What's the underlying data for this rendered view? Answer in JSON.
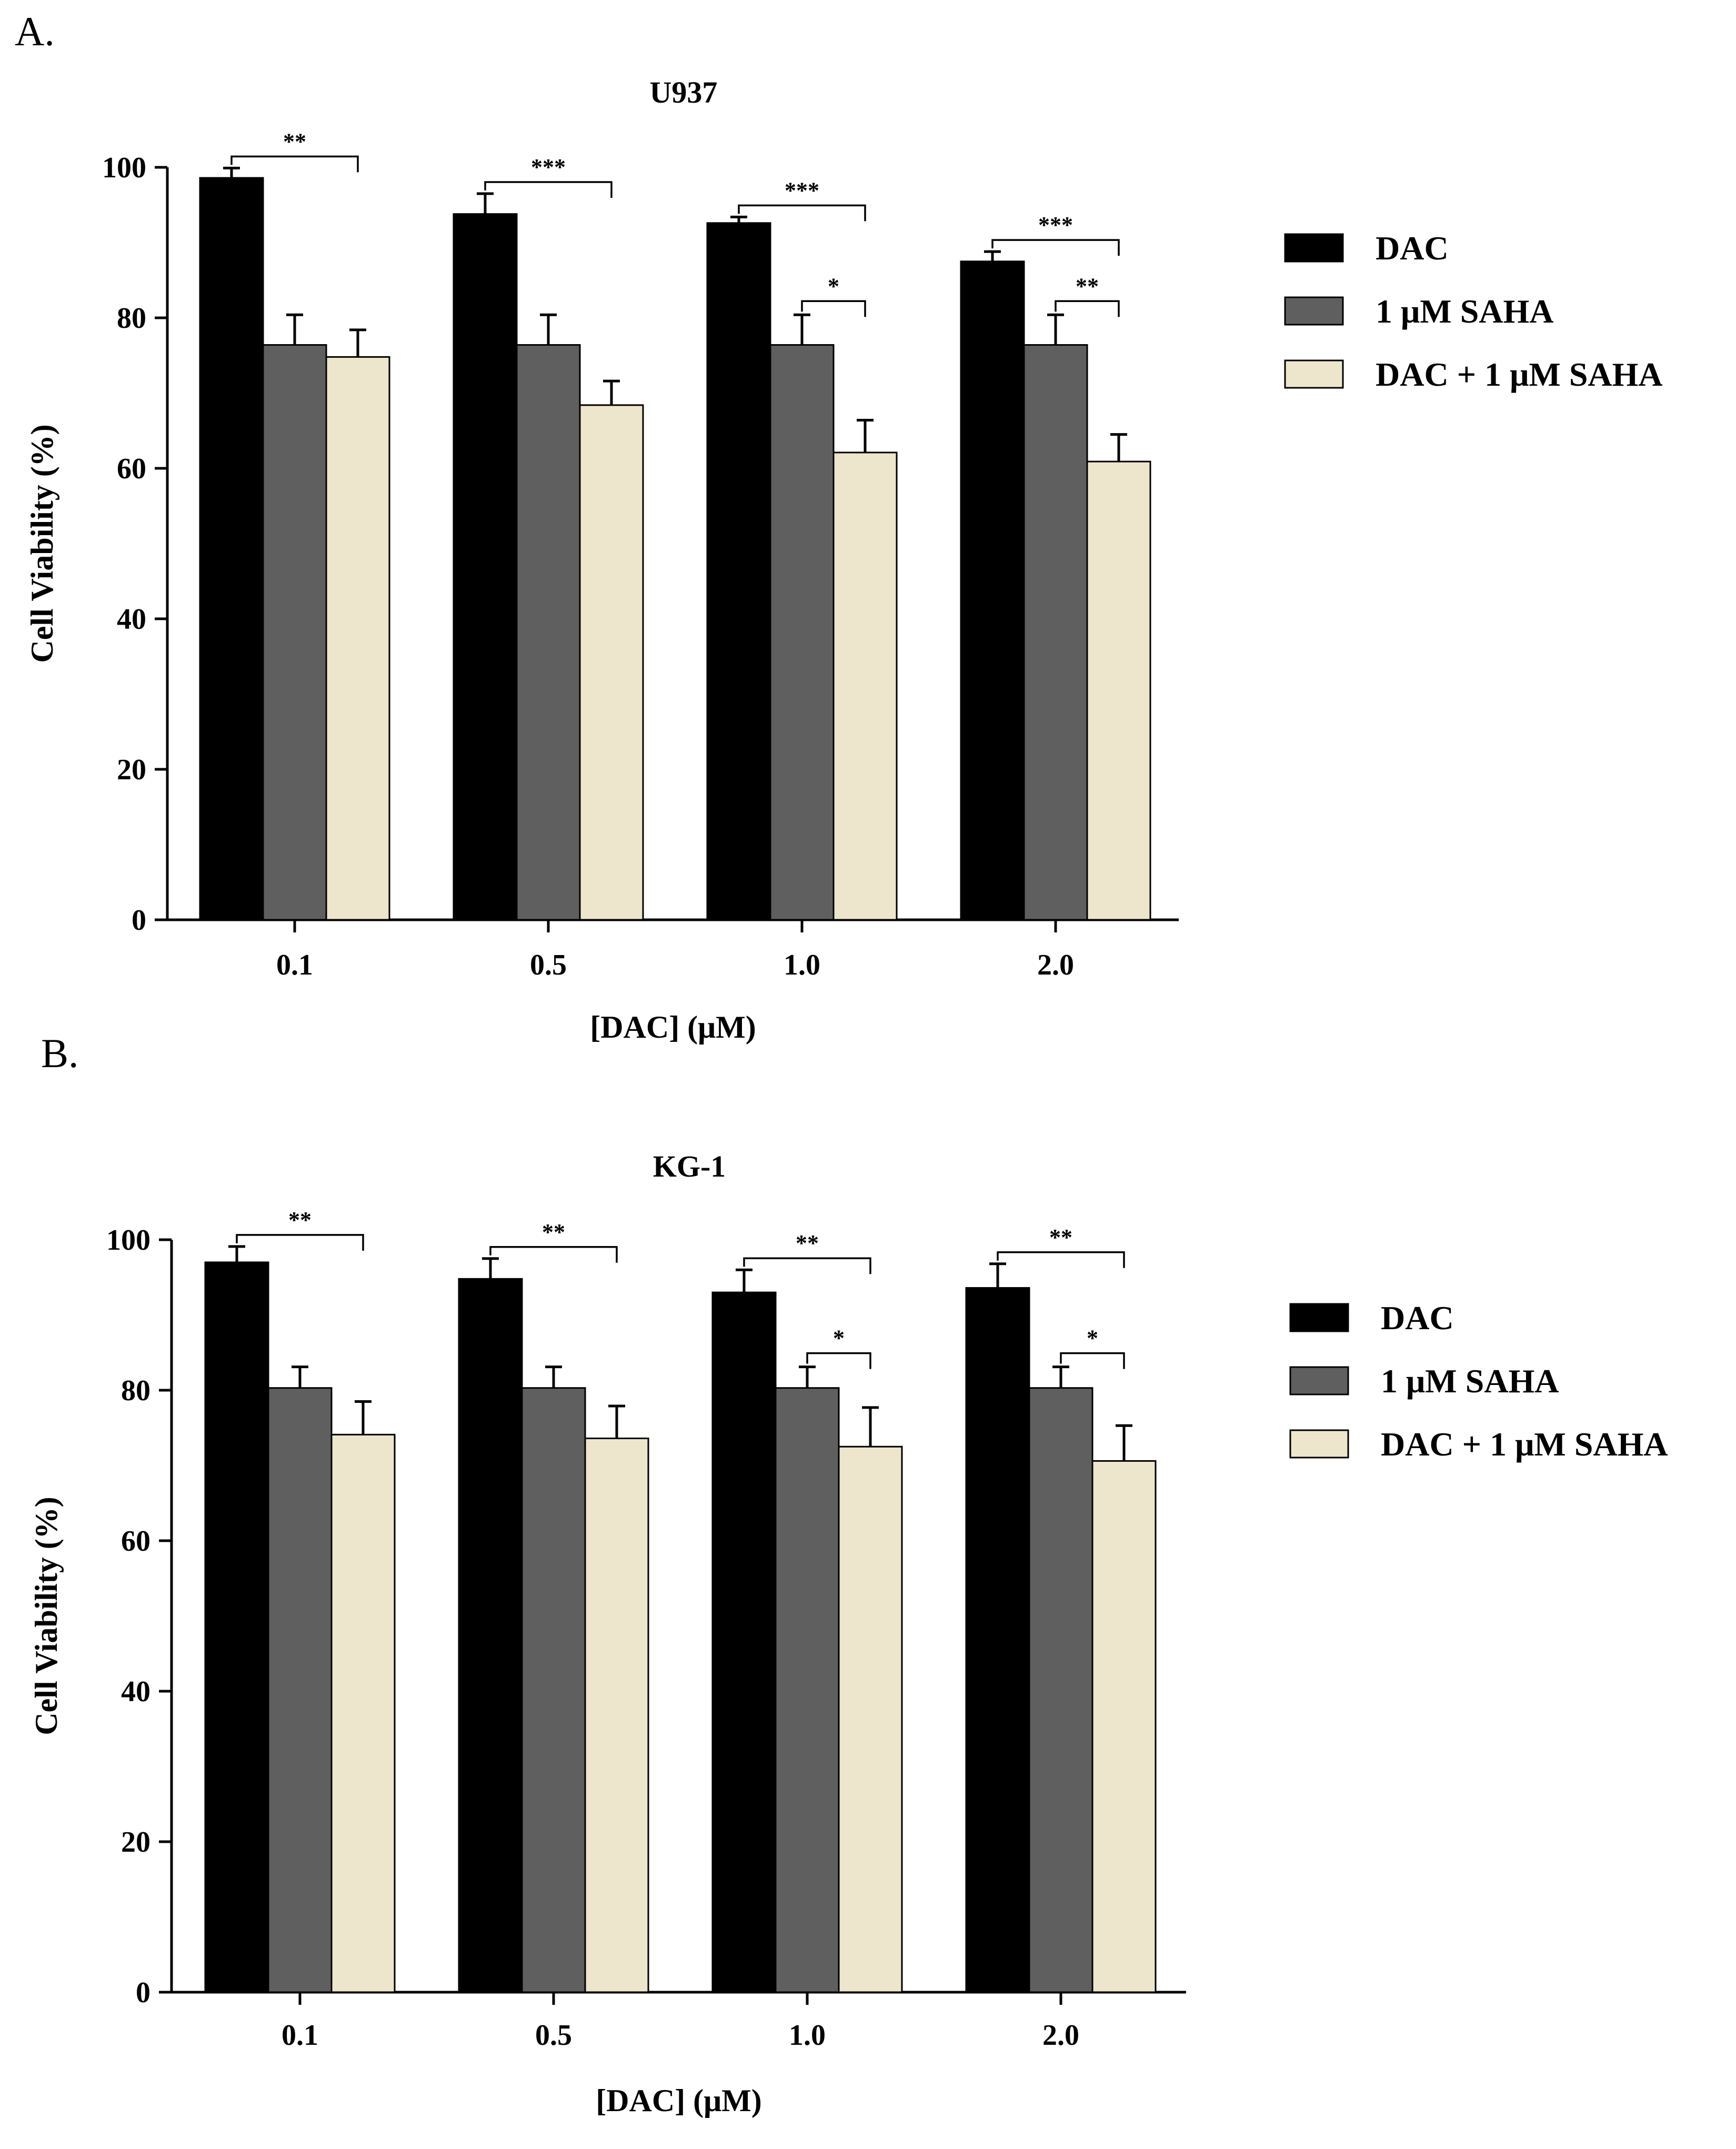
{
  "colors": {
    "DAC": "#000000",
    "1 μM SAHA": "#5f5f5f",
    "DAC + 1 μM SAHA": "#ede6cc",
    "axis": "#000000"
  },
  "chart_data": [
    {
      "panel": "A.",
      "type": "bar",
      "title": "U937",
      "xlabel": "[DAC] (μM)",
      "ylabel": "Cell Viability (%)",
      "ylim": [
        0,
        100
      ],
      "yticks": [
        0,
        20,
        40,
        60,
        80,
        100
      ],
      "categories": [
        "0.1",
        "0.5",
        "1.0",
        "2.0"
      ],
      "series": [
        {
          "name": "DAC",
          "values": [
            98.6,
            93.8,
            92.6,
            87.5
          ],
          "errors": [
            1.3,
            2.7,
            0.8,
            1.3
          ]
        },
        {
          "name": "1 μM SAHA",
          "values": [
            76.4,
            76.4,
            76.4,
            76.4
          ],
          "errors": [
            4.0,
            4.0,
            4.0,
            4.0
          ]
        },
        {
          "name": "DAC + 1 μM SAHA",
          "values": [
            74.8,
            68.4,
            62.1,
            60.9
          ],
          "errors": [
            3.6,
            3.2,
            4.3,
            3.6
          ]
        }
      ],
      "legend": {
        "position": "right",
        "entries": [
          "DAC",
          "1 μM SAHA",
          "DAC + 1 μM SAHA"
        ]
      },
      "significance": [
        {
          "category": "0.1",
          "from": "DAC",
          "to": "DAC + 1 μM SAHA",
          "label": "**",
          "level": 1
        },
        {
          "category": "0.5",
          "from": "DAC",
          "to": "DAC + 1 μM SAHA",
          "label": "***",
          "level": 1
        },
        {
          "category": "1.0",
          "from": "DAC",
          "to": "DAC + 1 μM SAHA",
          "label": "***",
          "level": 1
        },
        {
          "category": "1.0",
          "from": "1 μM SAHA",
          "to": "DAC + 1 μM SAHA",
          "label": "*",
          "level": 0
        },
        {
          "category": "2.0",
          "from": "DAC",
          "to": "DAC + 1 μM SAHA",
          "label": "***",
          "level": 1
        },
        {
          "category": "2.0",
          "from": "1 μM SAHA",
          "to": "DAC + 1 μM SAHA",
          "label": "**",
          "level": 0
        }
      ]
    },
    {
      "panel": "B.",
      "type": "bar",
      "title": "KG-1",
      "xlabel": "[DAC] (μM)",
      "ylabel": "Cell Viability (%)",
      "ylim": [
        0,
        100
      ],
      "yticks": [
        0,
        20,
        40,
        60,
        80,
        100
      ],
      "categories": [
        "0.1",
        "0.5",
        "1.0",
        "2.0"
      ],
      "series": [
        {
          "name": "DAC",
          "values": [
            97.0,
            94.8,
            93.0,
            93.6
          ],
          "errors": [
            2.1,
            2.7,
            3.0,
            3.2
          ]
        },
        {
          "name": "1 μM SAHA",
          "values": [
            80.3,
            80.3,
            80.3,
            80.3
          ],
          "errors": [
            2.8,
            2.8,
            2.8,
            2.8
          ]
        },
        {
          "name": "DAC + 1 μM SAHA",
          "values": [
            74.1,
            73.6,
            72.5,
            70.6
          ],
          "errors": [
            4.4,
            4.3,
            5.2,
            4.7
          ]
        }
      ],
      "legend": {
        "position": "right",
        "entries": [
          "DAC",
          "1 μM SAHA",
          "DAC + 1 μM SAHA"
        ]
      },
      "significance": [
        {
          "category": "0.1",
          "from": "DAC",
          "to": "DAC + 1 μM SAHA",
          "label": "**",
          "level": 1
        },
        {
          "category": "0.5",
          "from": "DAC",
          "to": "DAC + 1 μM SAHA",
          "label": "**",
          "level": 1
        },
        {
          "category": "1.0",
          "from": "DAC",
          "to": "DAC + 1 μM SAHA",
          "label": "**",
          "level": 1
        },
        {
          "category": "1.0",
          "from": "1 μM SAHA",
          "to": "DAC + 1 μM SAHA",
          "label": "*",
          "level": 0
        },
        {
          "category": "2.0",
          "from": "DAC",
          "to": "DAC + 1 μM SAHA",
          "label": "**",
          "level": 1
        },
        {
          "category": "2.0",
          "from": "1 μM SAHA",
          "to": "DAC + 1 μM SAHA",
          "label": "*",
          "level": 0
        }
      ]
    }
  ]
}
